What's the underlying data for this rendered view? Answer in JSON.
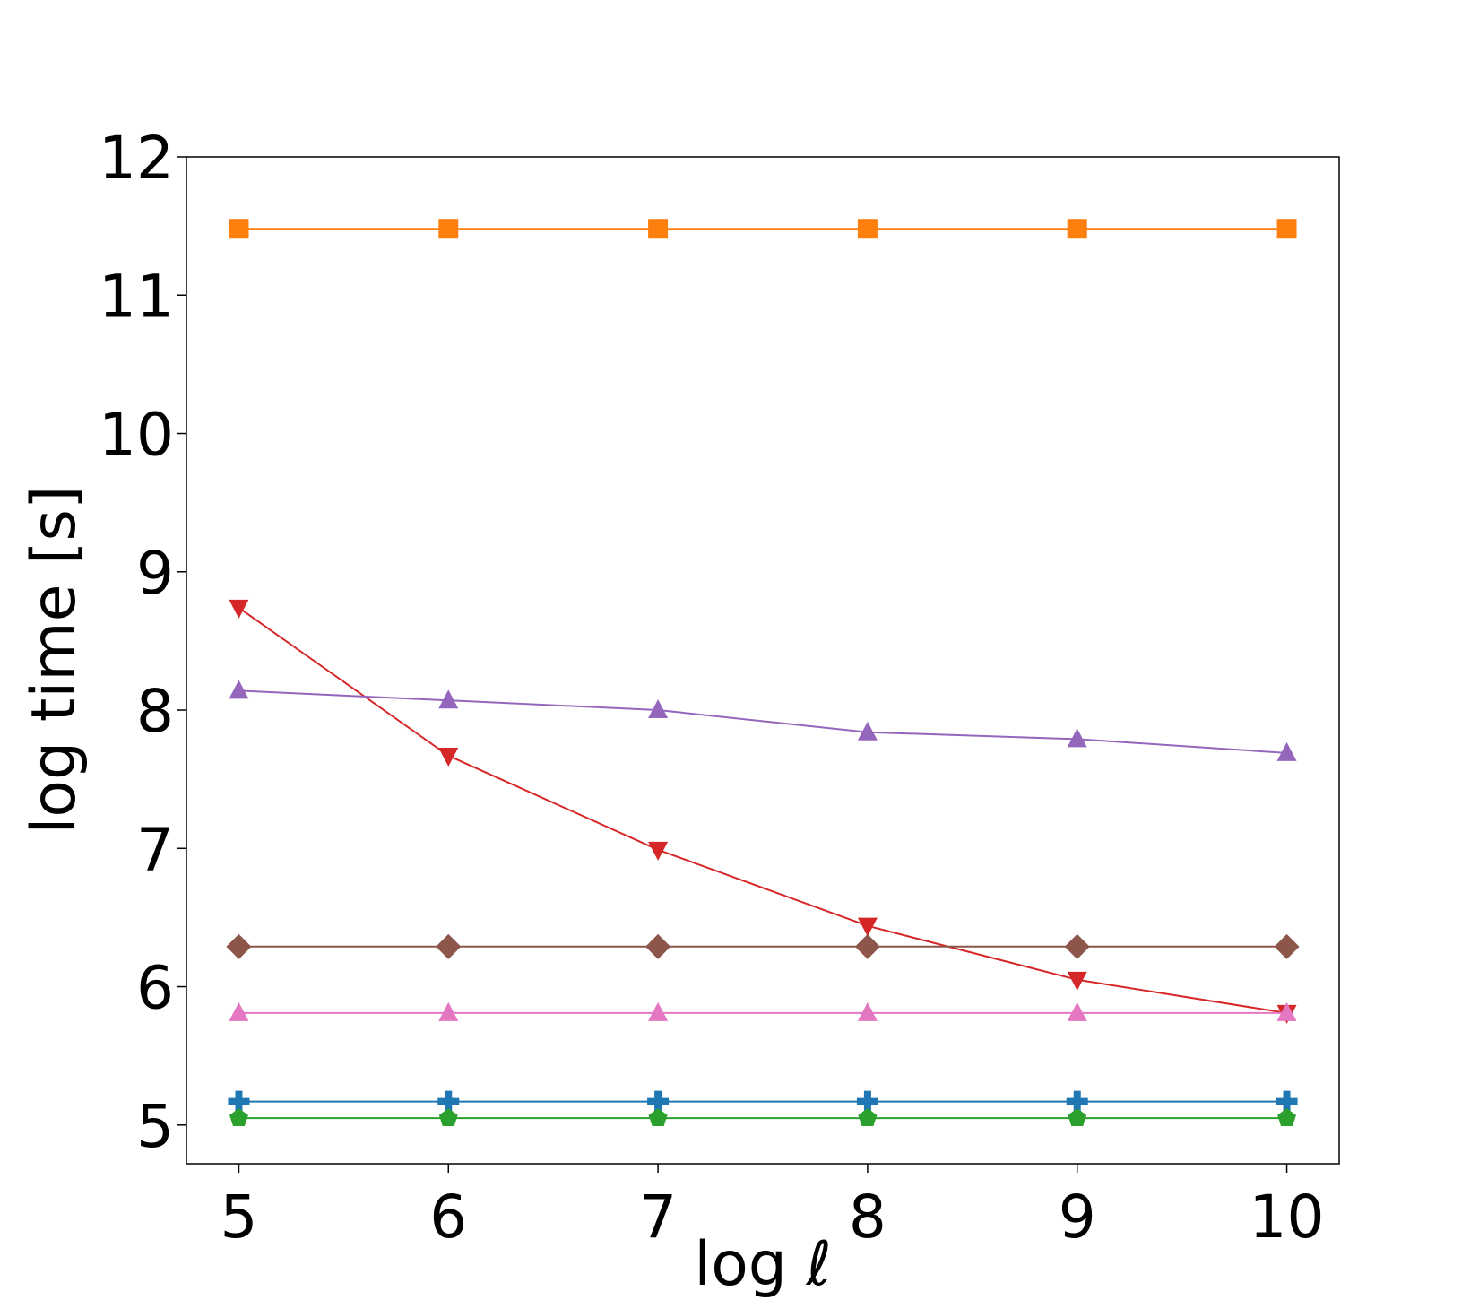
{
  "chart_data": {
    "type": "line",
    "title": "",
    "xlabel": "log ℓ",
    "ylabel": "log time [s]",
    "xlim": [
      4.75,
      10.25
    ],
    "ylim": [
      4.72,
      12.0
    ],
    "xticks": [
      5,
      6,
      7,
      8,
      9,
      10
    ],
    "xtick_labels": [
      "5",
      "6",
      "7",
      "8",
      "9",
      "10"
    ],
    "yticks": [
      5,
      6,
      7,
      8,
      9,
      10,
      11,
      12
    ],
    "ytick_labels": [
      "5",
      "6",
      "7",
      "8",
      "9",
      "10",
      "11",
      "12"
    ],
    "grid": false,
    "legend": "none",
    "x": [
      5,
      6,
      7,
      8,
      9,
      10
    ],
    "series": [
      {
        "color": "#ff7f0e",
        "marker": "square",
        "values": [
          11.48,
          11.48,
          11.48,
          11.48,
          11.48,
          11.48
        ]
      },
      {
        "color": "#d62728",
        "marker": "triangle-down",
        "values": [
          8.74,
          7.67,
          6.99,
          6.44,
          6.05,
          5.81
        ]
      },
      {
        "color": "#9467bd",
        "marker": "triangle-up",
        "values": [
          8.14,
          8.07,
          8.0,
          7.84,
          7.79,
          7.69
        ]
      },
      {
        "color": "#8c564b",
        "marker": "diamond",
        "values": [
          6.29,
          6.29,
          6.29,
          6.29,
          6.29,
          6.29
        ]
      },
      {
        "color": "#e377c2",
        "marker": "triangle-up",
        "values": [
          5.81,
          5.81,
          5.81,
          5.81,
          5.81,
          5.81
        ]
      },
      {
        "color": "#1f77b4",
        "marker": "plus",
        "values": [
          5.17,
          5.17,
          5.17,
          5.17,
          5.17,
          5.17
        ]
      },
      {
        "color": "#2ca02c",
        "marker": "pentagon",
        "values": [
          5.05,
          5.05,
          5.05,
          5.05,
          5.05,
          5.05
        ]
      }
    ]
  }
}
